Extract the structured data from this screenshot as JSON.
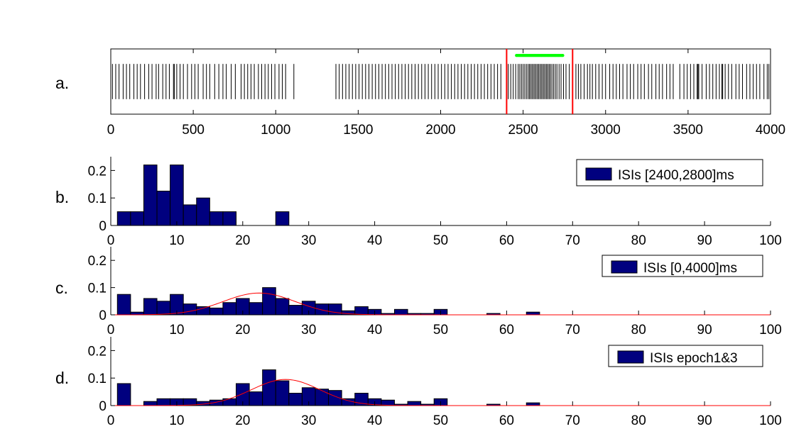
{
  "figure": {
    "background": "#ffffff",
    "axis_color": "#000000",
    "bar_fill": "#00007f",
    "bar_edge": "#000000",
    "fit_color": "#ff0000",
    "marker_color": "#00ff00",
    "window_color": "#ff0000"
  },
  "chart_data": [
    {
      "id": "a",
      "type": "raster",
      "panel_label": "a.",
      "xlim": [
        0,
        4000
      ],
      "ylim": [
        0,
        1
      ],
      "xticks": [
        0,
        500,
        1000,
        1500,
        2000,
        2500,
        3000,
        3500,
        4000
      ],
      "tick_labels": [
        "0",
        "500",
        "1000",
        "1500",
        "2000",
        "2500",
        "3000",
        "3500",
        "4000"
      ],
      "grid": false,
      "spike_band": [
        0.23,
        0.77
      ],
      "window_lines": {
        "x": [
          2400,
          2800
        ],
        "color": "#ff0000"
      },
      "marker_row": {
        "x_start": 2460,
        "x_end": 2740,
        "count": 34,
        "y": 0.9,
        "color": "#00ff00"
      },
      "spike_times": [
        10,
        30,
        50,
        75,
        95,
        115,
        140,
        160,
        180,
        205,
        230,
        250,
        275,
        290,
        315,
        335,
        355,
        380,
        385,
        400,
        420,
        440,
        465,
        490,
        510,
        530,
        560,
        580,
        600,
        630,
        655,
        680,
        700,
        730,
        755,
        790,
        810,
        830,
        850,
        870,
        895,
        915,
        935,
        955,
        975,
        995,
        1020,
        1040,
        1060,
        1110,
        1365,
        1385,
        1405,
        1425,
        1445,
        1465,
        1485,
        1505,
        1525,
        1545,
        1565,
        1585,
        1605,
        1625,
        1645,
        1665,
        1685,
        1705,
        1725,
        1745,
        1765,
        1785,
        1805,
        1825,
        1845,
        1865,
        1885,
        1905,
        1925,
        1945,
        1965,
        1985,
        2005,
        2025,
        2045,
        2065,
        2085,
        2105,
        2125,
        2145,
        2165,
        2185,
        2205,
        2225,
        2245,
        2265,
        2285,
        2305,
        2325,
        2345,
        2365,
        2410,
        2425,
        2440,
        2455,
        2470,
        2480,
        2490,
        2500,
        2510,
        2520,
        2530,
        2538,
        2546,
        2554,
        2562,
        2570,
        2578,
        2586,
        2594,
        2602,
        2610,
        2618,
        2626,
        2634,
        2642,
        2650,
        2658,
        2666,
        2675,
        2685,
        2695,
        2705,
        2718,
        2730,
        2745,
        2760,
        2780,
        2820,
        2835,
        2850,
        2870,
        2890,
        2905,
        2920,
        2940,
        2960,
        2980,
        3000,
        3025,
        3045,
        3065,
        3085,
        3105,
        3130,
        3150,
        3170,
        3195,
        3215,
        3235,
        3260,
        3280,
        3305,
        3325,
        3345,
        3370,
        3390,
        3410,
        3450,
        3475,
        3495,
        3515,
        3535,
        3555,
        3560,
        3565,
        3585,
        3610,
        3630,
        3650,
        3670,
        3690,
        3705,
        3710,
        3725,
        3745,
        3765,
        3790,
        3810,
        3830,
        3855,
        3875,
        3895,
        3915,
        3935,
        3960,
        3980,
        3990
      ]
    },
    {
      "id": "b",
      "type": "bar",
      "panel_label": "b.",
      "xlim": [
        0,
        100
      ],
      "ylim": [
        0,
        0.25
      ],
      "xticks": [
        0,
        10,
        20,
        30,
        40,
        50,
        60,
        70,
        80,
        90,
        100
      ],
      "tick_labels": [
        "0",
        "10",
        "20",
        "30",
        "40",
        "50",
        "60",
        "70",
        "80",
        "90",
        "100"
      ],
      "yticks": [
        0,
        0.1,
        0.2
      ],
      "ytick_labels": [
        "0",
        "0.1",
        "0.2"
      ],
      "grid": false,
      "bin_width": 2,
      "bin_starts": [
        1,
        3,
        5,
        7,
        9,
        11,
        13,
        15,
        17,
        25
      ],
      "values": [
        0.05,
        0.05,
        0.22,
        0.125,
        0.22,
        0.075,
        0.1,
        0.05,
        0.05,
        0.05
      ],
      "legend": {
        "label": "ISIs [2400,2800]ms",
        "placement": "top-right"
      }
    },
    {
      "id": "c",
      "type": "bar",
      "panel_label": "c.",
      "xlim": [
        0,
        100
      ],
      "ylim": [
        0,
        0.25
      ],
      "xticks": [
        0,
        10,
        20,
        30,
        40,
        50,
        60,
        70,
        80,
        90,
        100
      ],
      "tick_labels": [
        "0",
        "10",
        "20",
        "30",
        "40",
        "50",
        "60",
        "70",
        "80",
        "90",
        "100"
      ],
      "yticks": [
        0,
        0.1,
        0.2
      ],
      "ytick_labels": [
        "0",
        "0.1",
        "0.2"
      ],
      "grid": false,
      "bin_width": 2,
      "bin_starts": [
        1,
        3,
        5,
        7,
        9,
        11,
        13,
        15,
        17,
        19,
        21,
        23,
        25,
        27,
        29,
        31,
        33,
        35,
        37,
        39,
        41,
        43,
        45,
        47,
        49,
        57,
        63
      ],
      "values": [
        0.075,
        0.01,
        0.06,
        0.05,
        0.075,
        0.04,
        0.03,
        0.025,
        0.045,
        0.06,
        0.045,
        0.1,
        0.06,
        0.035,
        0.05,
        0.04,
        0.04,
        0.015,
        0.03,
        0.02,
        0.005,
        0.02,
        0.005,
        0.005,
        0.02,
        0.005,
        0.01
      ],
      "fit": {
        "type": "gaussian",
        "peak": 0.08,
        "mean": 22.5,
        "sd": 5.5,
        "color": "#ff0000"
      },
      "legend": {
        "label": "ISIs [0,4000]ms",
        "placement": "top-right"
      }
    },
    {
      "id": "d",
      "type": "bar",
      "panel_label": "d.",
      "xlim": [
        0,
        100
      ],
      "ylim": [
        0,
        0.25
      ],
      "xticks": [
        0,
        10,
        20,
        30,
        40,
        50,
        60,
        70,
        80,
        90,
        100
      ],
      "tick_labels": [
        "0",
        "10",
        "20",
        "30",
        "40",
        "50",
        "60",
        "70",
        "80",
        "90",
        "100"
      ],
      "yticks": [
        0,
        0.1,
        0.2
      ],
      "ytick_labels": [
        "0",
        "0.1",
        "0.2"
      ],
      "grid": false,
      "bin_width": 2,
      "bin_starts": [
        1,
        5,
        7,
        9,
        11,
        13,
        15,
        17,
        19,
        21,
        23,
        25,
        27,
        29,
        31,
        33,
        35,
        37,
        39,
        41,
        43,
        45,
        47,
        49,
        57,
        63
      ],
      "values": [
        0.08,
        0.015,
        0.025,
        0.025,
        0.025,
        0.015,
        0.02,
        0.025,
        0.08,
        0.05,
        0.13,
        0.09,
        0.045,
        0.065,
        0.06,
        0.055,
        0.025,
        0.045,
        0.025,
        0.02,
        0.005,
        0.015,
        0.005,
        0.025,
        0.005,
        0.01
      ],
      "fit": {
        "type": "gaussian",
        "peak": 0.095,
        "mean": 26.5,
        "sd": 5.2,
        "color": "#ff0000"
      },
      "legend": {
        "label": "ISIs epoch1&3",
        "placement": "top-right"
      }
    }
  ]
}
